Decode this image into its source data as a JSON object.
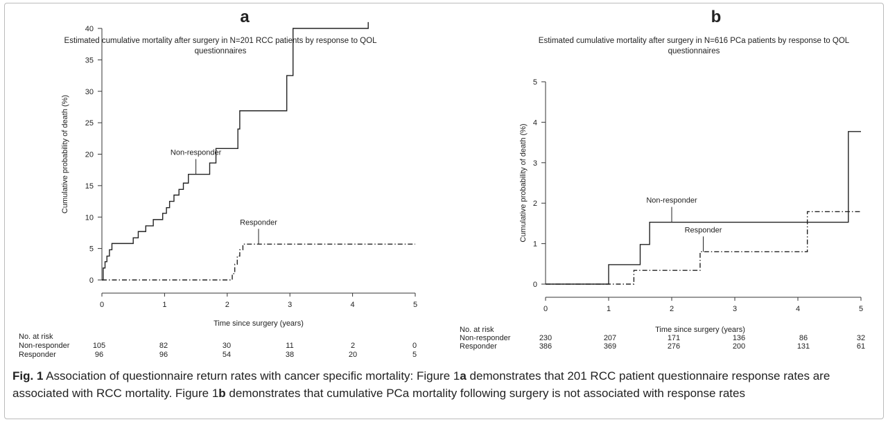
{
  "charts": [
    {
      "panel_letter": "a",
      "title_lines": [
        "Estimated cumulative mortality after surgery in N=201 RCC patients by response to QOL",
        "questionnaires"
      ],
      "ylabel": "Cumulative probability of death (%)",
      "xlabel": "Time since surgery (years)",
      "risk_header": "No. at risk",
      "risk_rows": [
        {
          "label": "Non-responder",
          "values": [
            "105",
            "82",
            "30",
            "11",
            "2",
            "0"
          ]
        },
        {
          "label": "Responder",
          "values": [
            "96",
            "96",
            "54",
            "38",
            "20",
            "5"
          ]
        }
      ],
      "annotations": [
        {
          "text": "Non-responder",
          "series": 0,
          "x": 1.5,
          "y": 16.8
        },
        {
          "text": "Responder",
          "series": 1,
          "x": 2.5,
          "y": 5.7
        }
      ]
    },
    {
      "panel_letter": "b",
      "title_lines": [
        "Estimated cumulative mortality after surgery in N=616 PCa patients by response to QOL",
        "questionnaires"
      ],
      "ylabel": "Cumulative probability of death (%)",
      "xlabel": "Time since surgery (years)",
      "risk_header": "No. at risk",
      "risk_rows": [
        {
          "label": "Non-responder",
          "values": [
            "230",
            "207",
            "171",
            "136",
            "86",
            "32"
          ]
        },
        {
          "label": "Responder",
          "values": [
            "386",
            "369",
            "276",
            "200",
            "131",
            "61"
          ]
        }
      ],
      "annotations": [
        {
          "text": "Non-responder",
          "series": 0,
          "x": 2.0,
          "y": 1.53
        },
        {
          "text": "Responder",
          "series": 1,
          "x": 2.5,
          "y": 0.8
        }
      ]
    }
  ],
  "chart_data": [
    {
      "type": "line",
      "title": "Estimated cumulative mortality after surgery in N=201 RCC patients by response to QOL questionnaires",
      "xlabel": "Time since surgery (years)",
      "ylabel": "Cumulative probability of death (%)",
      "xlim": [
        0,
        5
      ],
      "ylim": [
        0,
        40
      ],
      "xticks": [
        "0",
        "1",
        "2",
        "3",
        "4",
        "5"
      ],
      "yticks": [
        "0",
        "5",
        "10",
        "15",
        "20",
        "25",
        "30",
        "35",
        "40"
      ],
      "step": true,
      "series": [
        {
          "name": "Non-responder",
          "style": "solid",
          "x": [
            0,
            0.02,
            0.05,
            0.08,
            0.12,
            0.16,
            0.2,
            0.5,
            0.58,
            0.7,
            0.82,
            0.97,
            1.03,
            1.08,
            1.15,
            1.23,
            1.3,
            1.38,
            1.72,
            1.82,
            2.17,
            2.2,
            2.95,
            3.05,
            4.25,
            4.25
          ],
          "y": [
            0,
            1.9,
            2.9,
            3.8,
            4.8,
            5.8,
            5.8,
            6.7,
            7.7,
            8.6,
            9.6,
            10.6,
            11.5,
            12.5,
            13.5,
            14.4,
            15.4,
            16.8,
            18.6,
            20.9,
            24.0,
            26.9,
            32.5,
            40.0,
            40.0,
            41.0
          ]
        },
        {
          "name": "Responder",
          "style": "dash-dot",
          "x": [
            0,
            2.08,
            2.12,
            2.16,
            2.2,
            2.25,
            5.0
          ],
          "y": [
            0,
            1.0,
            2.5,
            3.8,
            4.8,
            5.7,
            5.7
          ]
        }
      ]
    },
    {
      "type": "line",
      "title": "Estimated cumulative mortality after surgery in N=616 PCa patients by response to QOL questionnaires",
      "xlabel": "Time since surgery (years)",
      "ylabel": "Cumulative probability of death (%)",
      "xlim": [
        0,
        5
      ],
      "ylim": [
        0,
        5
      ],
      "xticks": [
        "0",
        "1",
        "2",
        "3",
        "4",
        "5"
      ],
      "yticks": [
        "0",
        "1",
        "2",
        "3",
        "4",
        "5"
      ],
      "step": true,
      "series": [
        {
          "name": "Non-responder",
          "style": "solid",
          "x": [
            0,
            1.0,
            1.5,
            1.65,
            4.8,
            5.0
          ],
          "y": [
            0,
            0.48,
            0.98,
            1.53,
            3.77,
            3.77
          ]
        },
        {
          "name": "Responder",
          "style": "dash-dot",
          "x": [
            0,
            1.4,
            2.45,
            4.15,
            5.0
          ],
          "y": [
            0,
            0.34,
            0.8,
            1.79,
            1.79
          ]
        }
      ]
    }
  ],
  "caption": {
    "fig_label": "Fig. 1",
    "text_1": " Association of questionnaire return rates with cancer specific mortality: Figure 1",
    "bold_a": "a",
    "text_2": " demonstrates that 201 RCC patient questionnaire response rates are associated with RCC mortality. Figure 1",
    "bold_b": "b",
    "text_3": " demonstrates that cumulative PCa mortality following surgery is not associated with response rates"
  },
  "colors": {
    "line": "#222222",
    "axis": "#333333",
    "text": "#222222"
  }
}
